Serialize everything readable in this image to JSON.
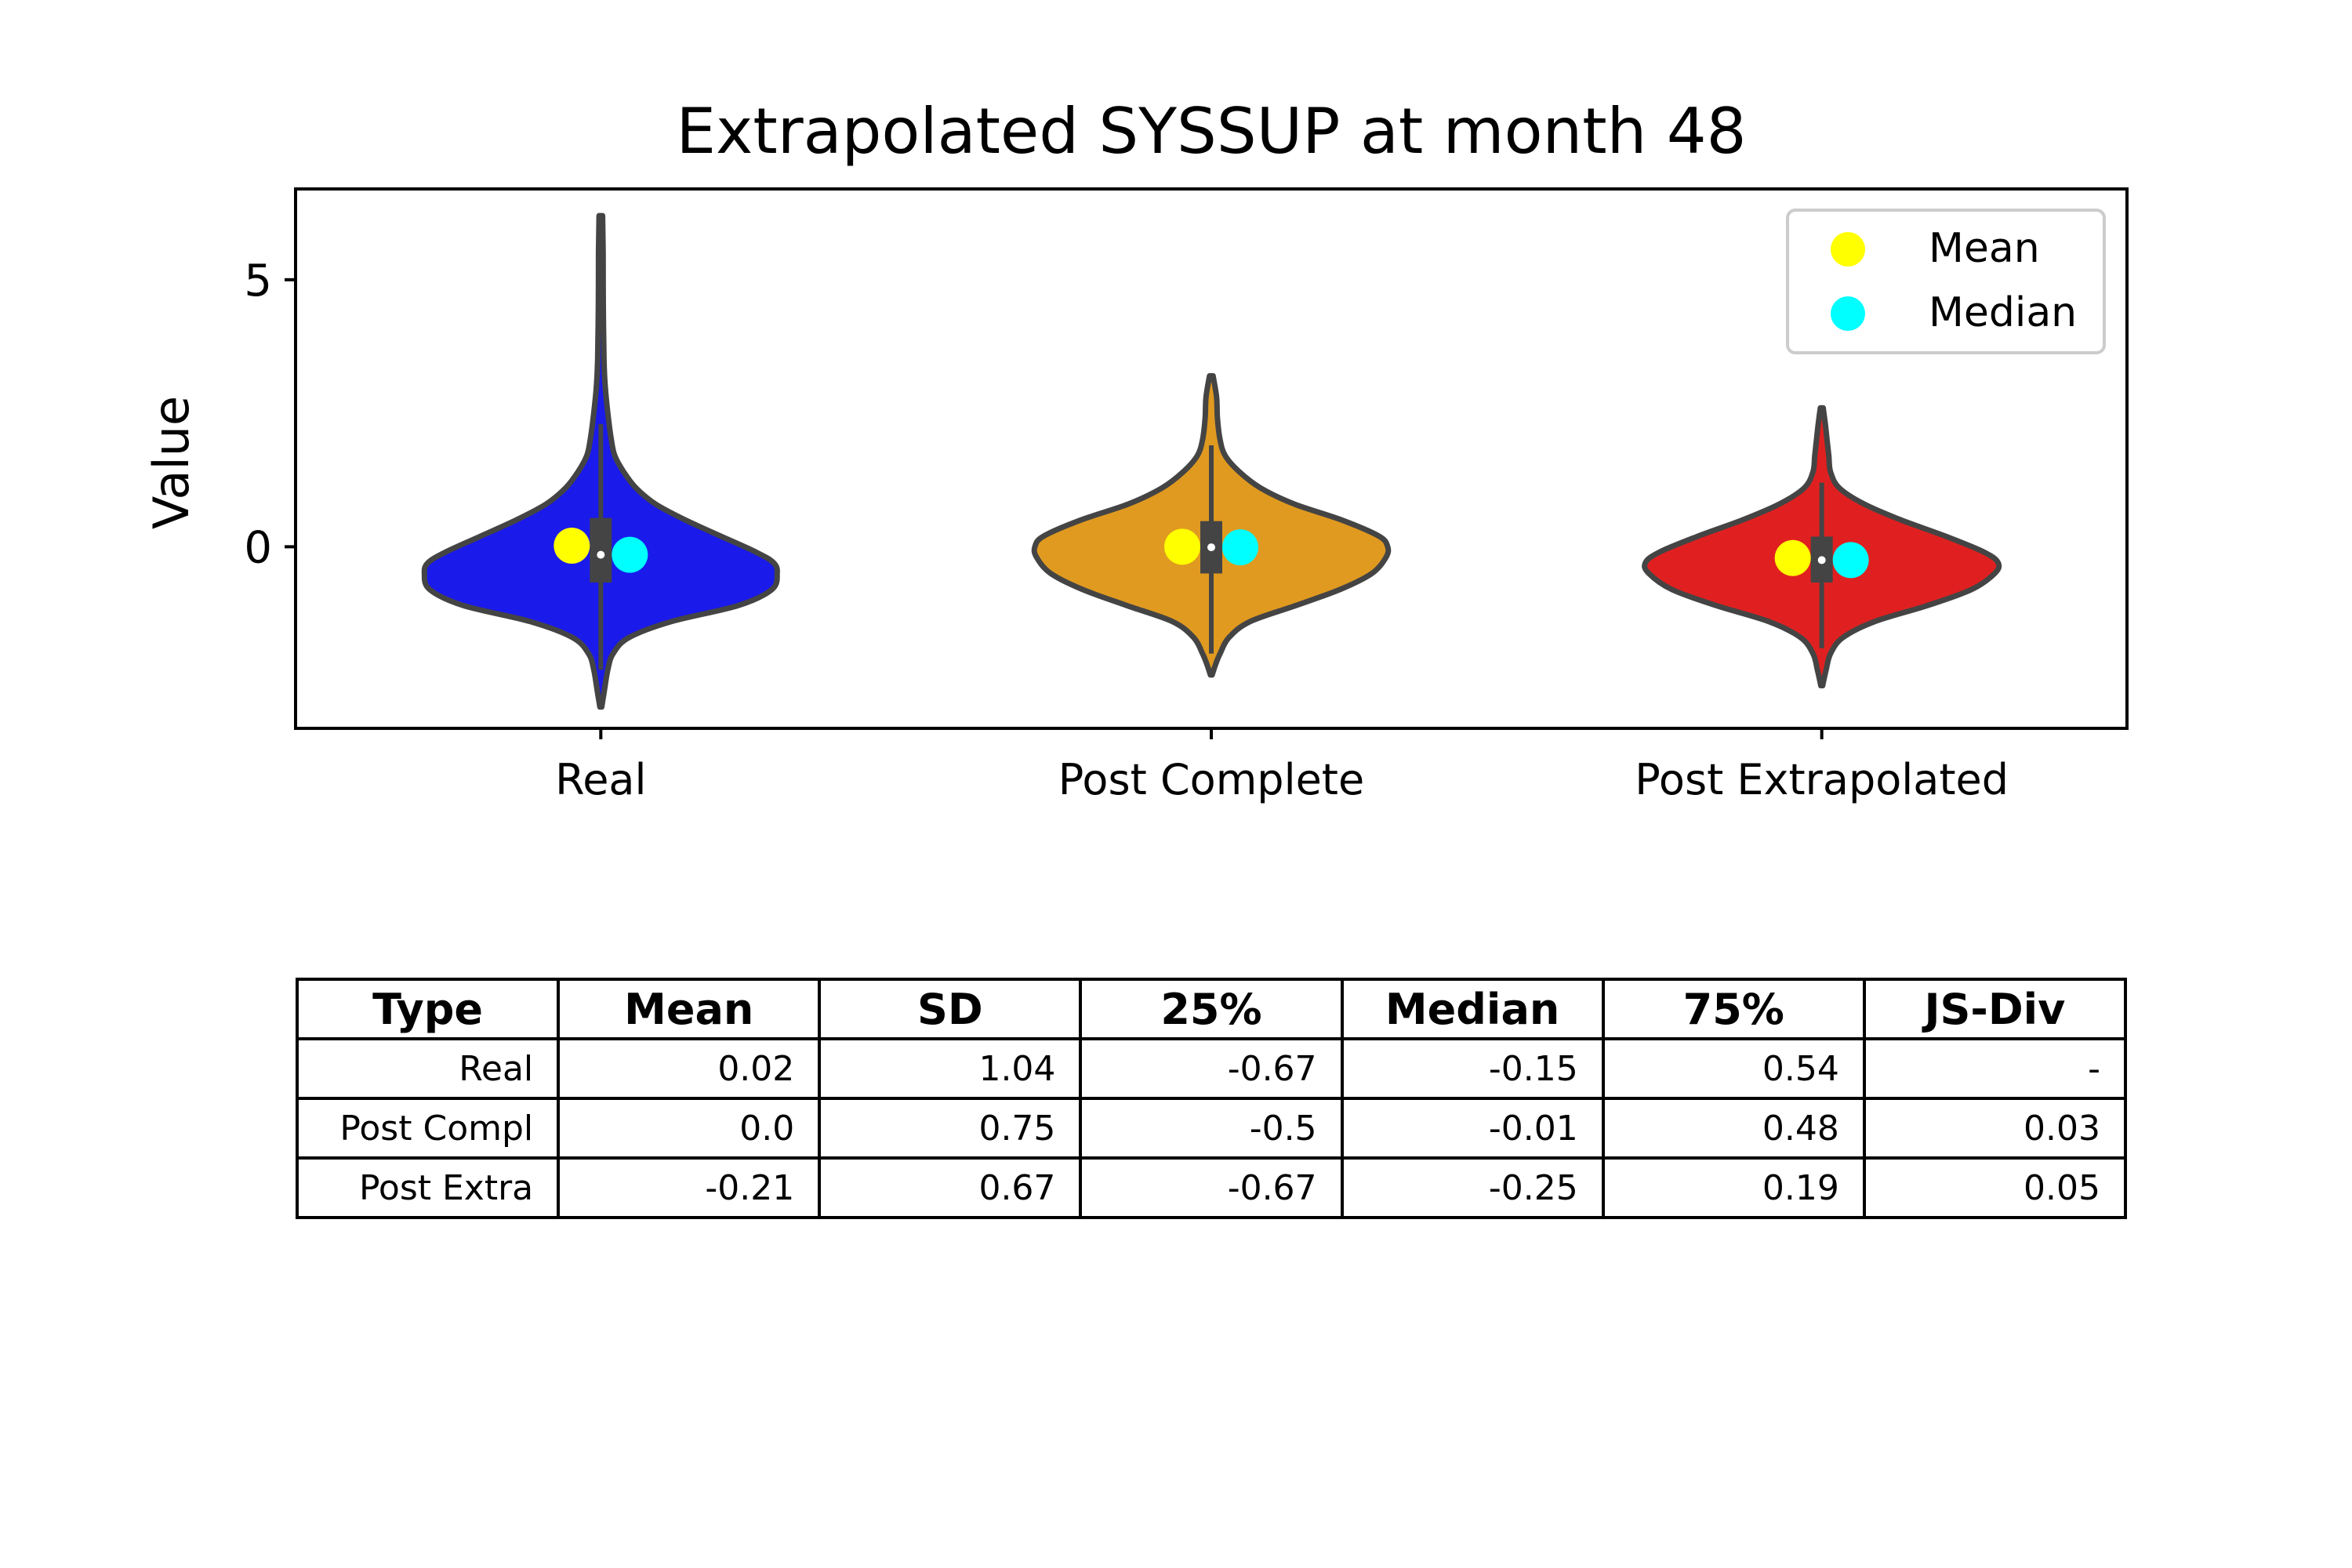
{
  "chart_data": {
    "type": "violin",
    "title": "Extrapolated SYSSUP at month 48",
    "ylabel": "Value",
    "xlabel": "",
    "ylim": [
      -3.4,
      6.7
    ],
    "yticks": [
      0,
      5
    ],
    "categories": [
      "Real",
      "Post Complete",
      "Post Extrapolated"
    ],
    "colors": [
      "#1a1aeb",
      "#e09a20",
      "#e02020"
    ],
    "legend": {
      "placement": "top-right",
      "entries": [
        {
          "label": "Mean",
          "color": "#ffff00"
        },
        {
          "label": "Median",
          "color": "#00ffff"
        }
      ]
    },
    "series": [
      {
        "category": "Real",
        "mean": 0.02,
        "median": -0.15,
        "q1": -0.67,
        "q3": 0.54,
        "whisker_low": -2.3,
        "whisker_high": 2.3,
        "profile": [
          [
            -3.0,
            0.005
          ],
          [
            -2.7,
            0.02
          ],
          [
            -2.3,
            0.04
          ],
          [
            -2.0,
            0.07
          ],
          [
            -1.7,
            0.16
          ],
          [
            -1.4,
            0.4
          ],
          [
            -1.1,
            0.78
          ],
          [
            -0.8,
            0.97
          ],
          [
            -0.5,
            1.0
          ],
          [
            -0.3,
            0.98
          ],
          [
            -0.1,
            0.88
          ],
          [
            0.2,
            0.68
          ],
          [
            0.5,
            0.48
          ],
          [
            0.8,
            0.31
          ],
          [
            1.1,
            0.2
          ],
          [
            1.4,
            0.13
          ],
          [
            1.7,
            0.08
          ],
          [
            2.0,
            0.06
          ],
          [
            2.5,
            0.04
          ],
          [
            3.0,
            0.025
          ],
          [
            3.5,
            0.018
          ],
          [
            4.5,
            0.014
          ],
          [
            5.5,
            0.013
          ],
          [
            6.2,
            0.01
          ]
        ]
      },
      {
        "category": "Post Complete",
        "mean": 0.0,
        "median": -0.01,
        "q1": -0.5,
        "q3": 0.48,
        "whisker_low": -2.0,
        "whisker_high": 1.9,
        "profile": [
          [
            -2.4,
            0.005
          ],
          [
            -2.2,
            0.025
          ],
          [
            -2.0,
            0.05
          ],
          [
            -1.7,
            0.1
          ],
          [
            -1.4,
            0.22
          ],
          [
            -1.1,
            0.48
          ],
          [
            -0.8,
            0.73
          ],
          [
            -0.5,
            0.91
          ],
          [
            -0.2,
            0.99
          ],
          [
            0.0,
            1.0
          ],
          [
            0.2,
            0.95
          ],
          [
            0.5,
            0.74
          ],
          [
            0.8,
            0.47
          ],
          [
            1.1,
            0.28
          ],
          [
            1.4,
            0.16
          ],
          [
            1.7,
            0.08
          ],
          [
            2.0,
            0.05
          ],
          [
            2.4,
            0.035
          ],
          [
            2.8,
            0.03
          ],
          [
            3.2,
            0.01
          ]
        ]
      },
      {
        "category": "Post Extrapolated",
        "mean": -0.21,
        "median": -0.25,
        "q1": -0.67,
        "q3": 0.19,
        "whisker_low": -1.9,
        "whisker_high": 1.2,
        "profile": [
          [
            -2.6,
            0.005
          ],
          [
            -2.3,
            0.025
          ],
          [
            -2.0,
            0.05
          ],
          [
            -1.7,
            0.12
          ],
          [
            -1.4,
            0.3
          ],
          [
            -1.1,
            0.6
          ],
          [
            -0.8,
            0.85
          ],
          [
            -0.5,
            0.98
          ],
          [
            -0.3,
            1.0
          ],
          [
            -0.1,
            0.92
          ],
          [
            0.2,
            0.7
          ],
          [
            0.5,
            0.45
          ],
          [
            0.8,
            0.24
          ],
          [
            1.1,
            0.1
          ],
          [
            1.4,
            0.05
          ],
          [
            1.7,
            0.04
          ],
          [
            2.0,
            0.03
          ],
          [
            2.3,
            0.02
          ],
          [
            2.6,
            0.008
          ]
        ]
      }
    ]
  },
  "table": {
    "headers": [
      "Type",
      "Mean",
      "SD",
      "25%",
      "Median",
      "75%",
      "JS-Div"
    ],
    "rows": [
      [
        "Real",
        "0.02",
        "1.04",
        "-0.67",
        "-0.15",
        "0.54",
        "-"
      ],
      [
        "Post Compl",
        "0.0",
        "0.75",
        "-0.5",
        "-0.01",
        "0.48",
        "0.03"
      ],
      [
        "Post Extra",
        "-0.21",
        "0.67",
        "-0.67",
        "-0.25",
        "0.19",
        "0.05"
      ]
    ]
  }
}
